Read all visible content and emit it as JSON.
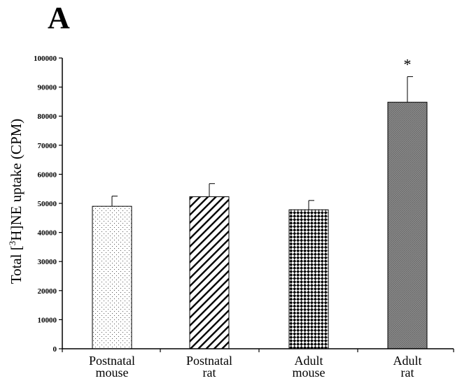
{
  "panel_label": "A",
  "chart_data": {
    "type": "bar",
    "categories": [
      [
        "Postnatal",
        "mouse"
      ],
      [
        "Postnatal",
        "rat"
      ],
      [
        "Adult",
        "mouse"
      ],
      [
        "Adult",
        "rat"
      ]
    ],
    "values": [
      49000,
      52300,
      47800,
      84800
    ],
    "errors": [
      3500,
      4500,
      3200,
      8800
    ],
    "significance": [
      "",
      "",
      "",
      "*"
    ],
    "bar_patterns": [
      "sparse-dots",
      "diagonal-stripes",
      "checker-diamonds",
      "fine-crosshatch"
    ],
    "ylabel_parts": [
      "Total [",
      "3",
      "H]NE uptake (CPM)"
    ],
    "xlabel": "",
    "ylim": [
      0,
      100000
    ],
    "yticks": [
      0,
      10000,
      20000,
      30000,
      40000,
      50000,
      60000,
      70000,
      80000,
      90000,
      100000
    ],
    "grid": false,
    "colors": {
      "dark_bar": "#808080",
      "outline": "#000000"
    }
  }
}
